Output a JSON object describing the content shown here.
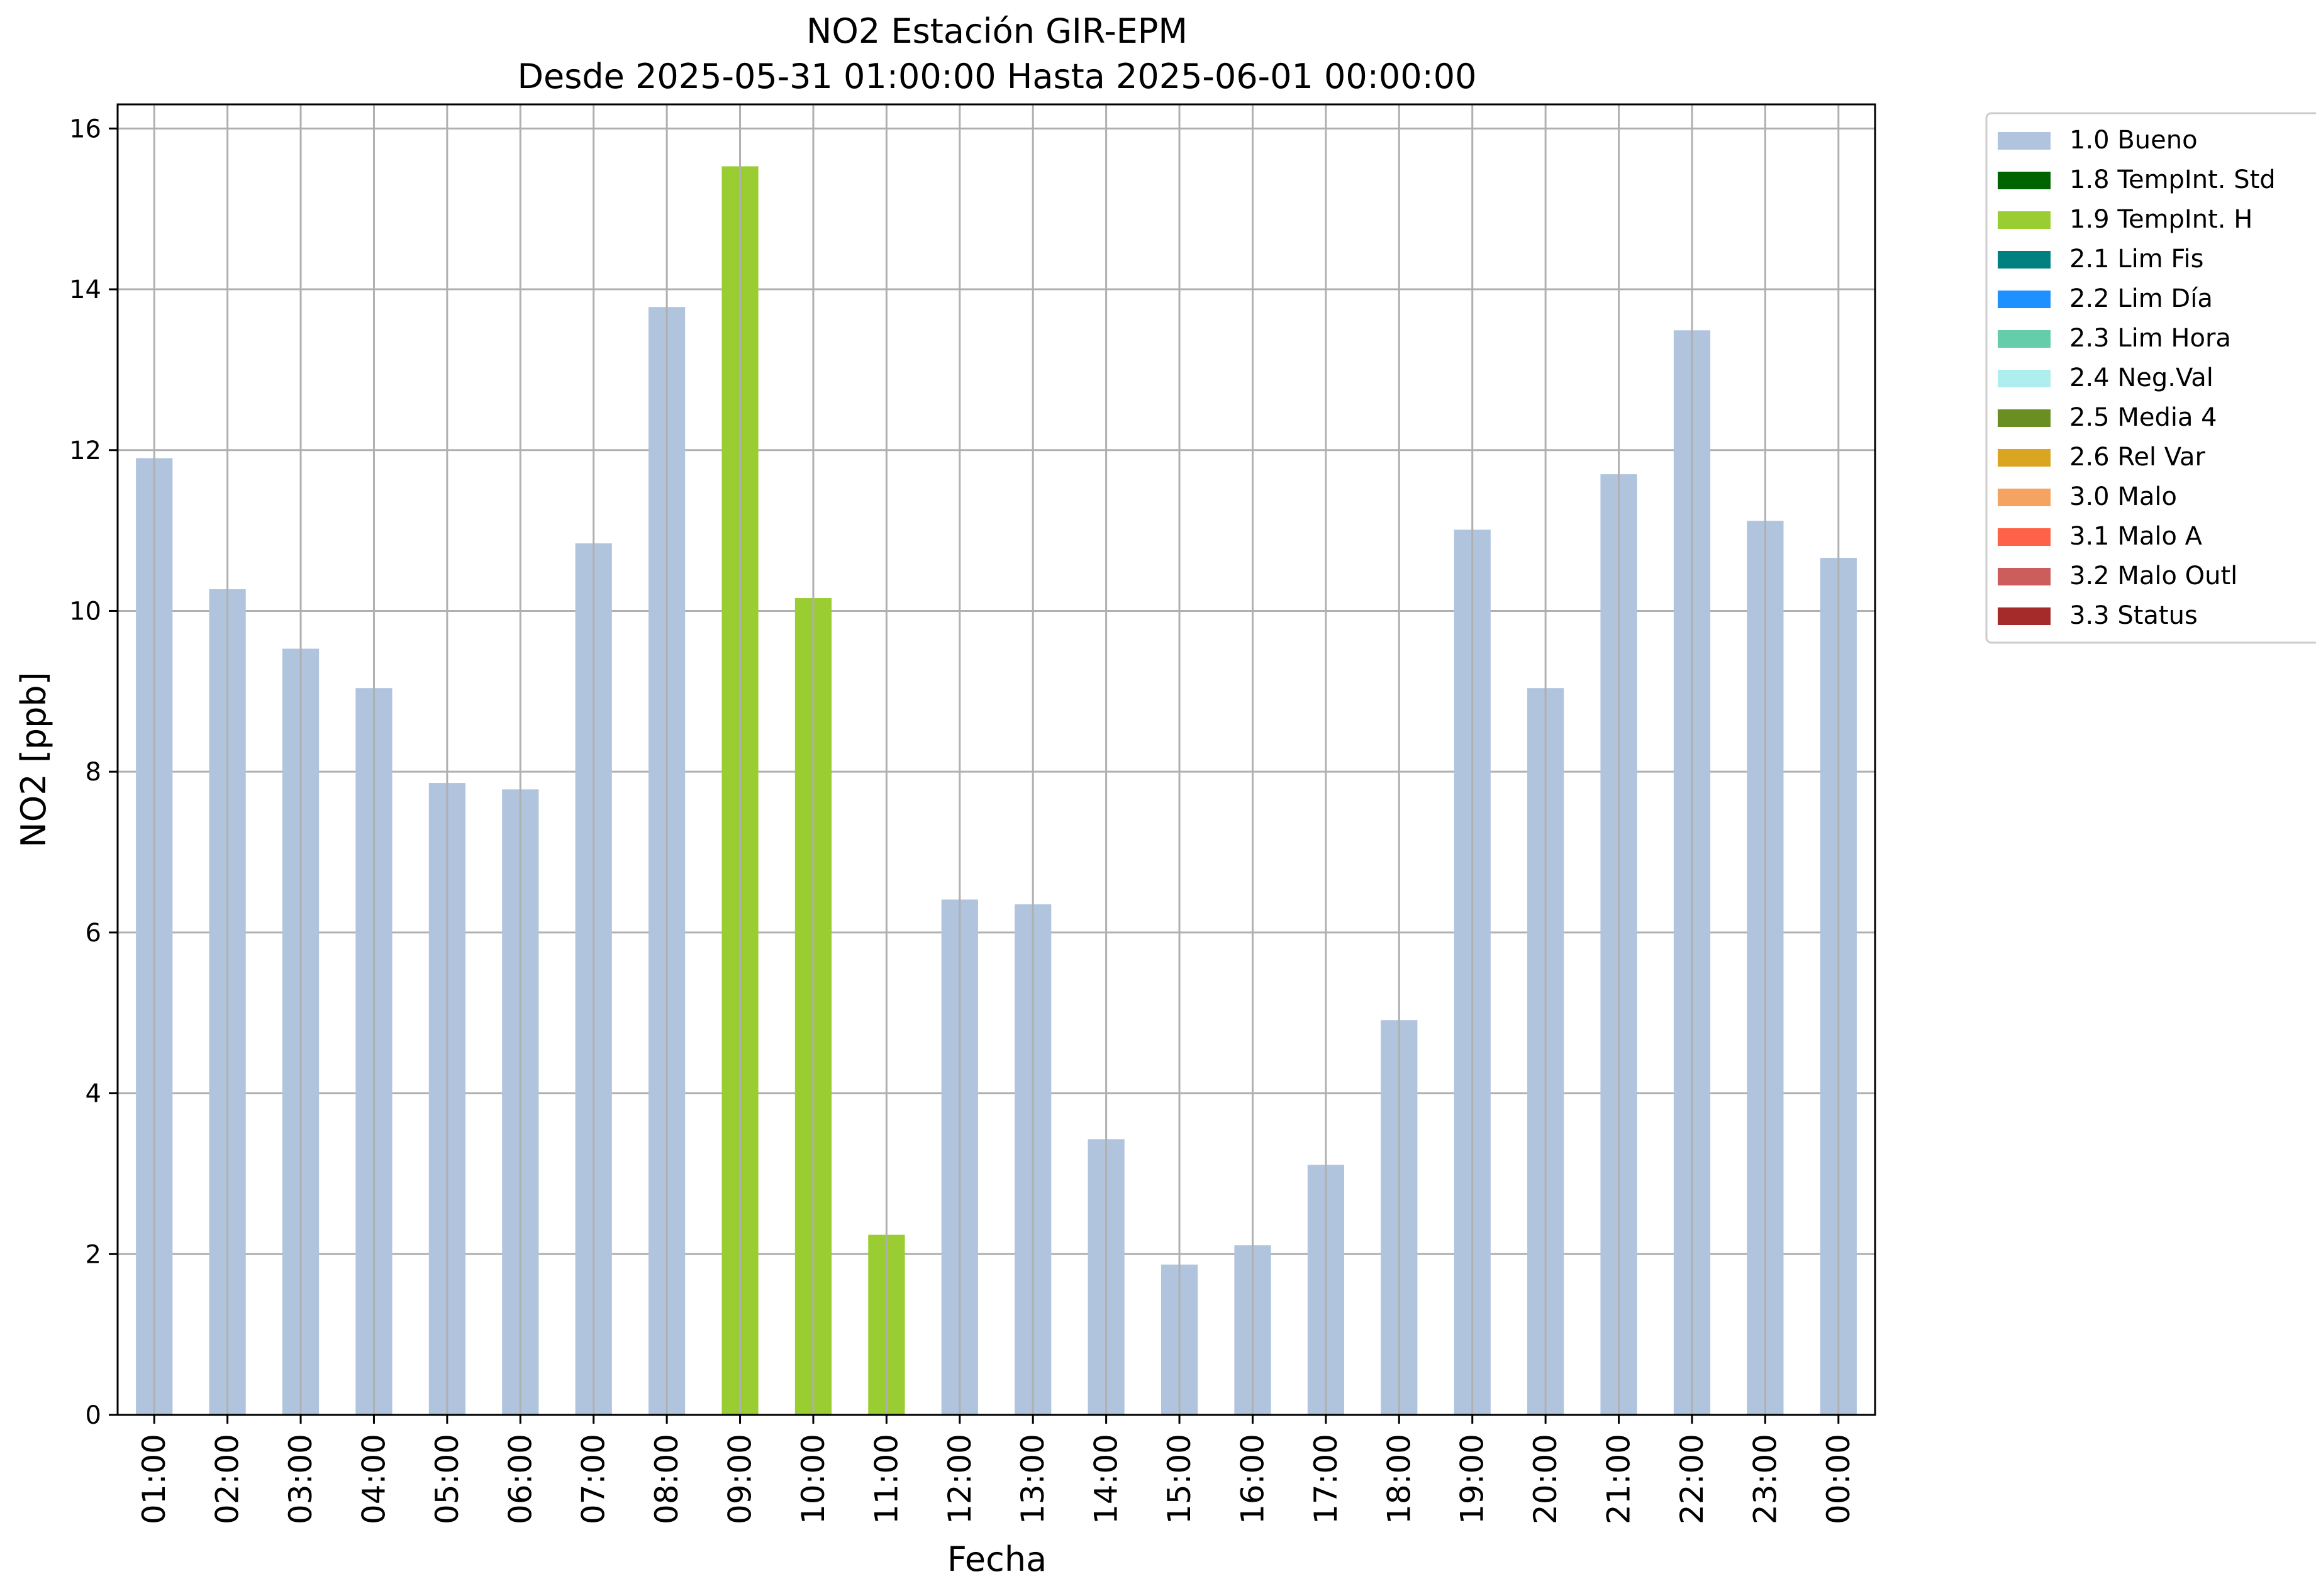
{
  "chart_data": {
    "type": "bar",
    "title": "NO2 Estación GIR-EPM",
    "subtitle": "Desde 2025-05-31 01:00:00 Hasta 2025-06-01 00:00:00",
    "xlabel": "Fecha",
    "ylabel": "NO2 [ppb]",
    "ylim": [
      0,
      16.3
    ],
    "yticks": [
      0,
      2,
      4,
      6,
      8,
      10,
      12,
      14,
      16
    ],
    "grid": true,
    "legend_position": "outside-right",
    "categories": [
      "01:00",
      "02:00",
      "03:00",
      "04:00",
      "05:00",
      "06:00",
      "07:00",
      "08:00",
      "09:00",
      "10:00",
      "11:00",
      "12:00",
      "13:00",
      "14:00",
      "15:00",
      "16:00",
      "17:00",
      "18:00",
      "19:00",
      "20:00",
      "21:00",
      "22:00",
      "23:00",
      "00:00"
    ],
    "values": [
      11.9,
      10.27,
      9.53,
      9.04,
      7.86,
      7.78,
      10.84,
      13.78,
      15.53,
      10.16,
      2.24,
      6.41,
      6.35,
      3.43,
      1.87,
      2.11,
      3.11,
      4.91,
      11.01,
      9.04,
      11.7,
      13.49,
      11.12,
      10.66
    ],
    "flags": [
      "1.0 Bueno",
      "1.0 Bueno",
      "1.0 Bueno",
      "1.0 Bueno",
      "1.0 Bueno",
      "1.0 Bueno",
      "1.0 Bueno",
      "1.0 Bueno",
      "1.9 TempInt. H",
      "1.9 TempInt. H",
      "1.9 TempInt. H",
      "1.0 Bueno",
      "1.0 Bueno",
      "1.0 Bueno",
      "1.0 Bueno",
      "1.0 Bueno",
      "1.0 Bueno",
      "1.0 Bueno",
      "1.0 Bueno",
      "1.0 Bueno",
      "1.0 Bueno",
      "1.0 Bueno",
      "1.0 Bueno",
      "1.0 Bueno"
    ],
    "legend": [
      {
        "name": "1.0 Bueno",
        "color": "#b0c4de"
      },
      {
        "name": "1.8 TempInt. Std",
        "color": "#006400"
      },
      {
        "name": "1.9 TempInt. H",
        "color": "#9acd32"
      },
      {
        "name": "2.1 Lim Fis",
        "color": "#008080"
      },
      {
        "name": "2.2 Lim Día",
        "color": "#1e90ff"
      },
      {
        "name": "2.3 Lim Hora",
        "color": "#66cdaa"
      },
      {
        "name": "2.4 Neg.Val",
        "color": "#afeeee"
      },
      {
        "name": "2.5 Media 4",
        "color": "#6b8e23"
      },
      {
        "name": "2.6 Rel Var",
        "color": "#daa520"
      },
      {
        "name": "3.0 Malo",
        "color": "#f4a460"
      },
      {
        "name": "3.1 Malo A",
        "color": "#ff6347"
      },
      {
        "name": "3.2 Malo Outl",
        "color": "#cd5c5c"
      },
      {
        "name": "3.3 Status",
        "color": "#a52a2a"
      }
    ]
  }
}
